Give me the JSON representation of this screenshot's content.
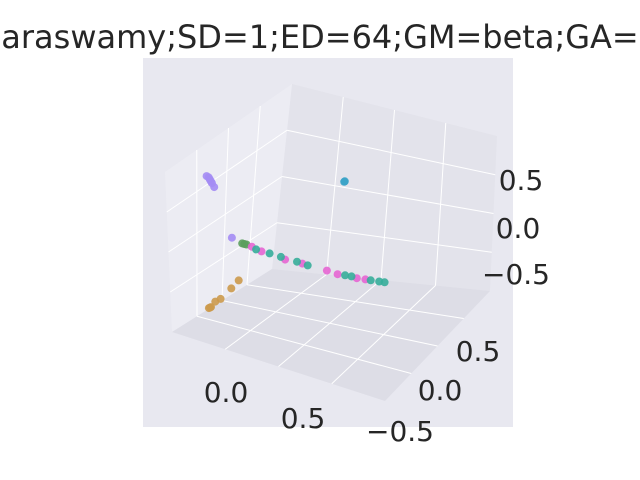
{
  "chart_data": {
    "type": "scatter",
    "projection": "3d",
    "title": "araswamy;SD=1;ED=64;GM=beta;GA=",
    "xlabel": "",
    "ylabel": "",
    "zlabel": "",
    "background": "#e8e8f0",
    "grid": true,
    "x_ticks": [
      "0.0",
      "0.5"
    ],
    "y_ticks": [
      "0.5",
      "0.0",
      "−0.5"
    ],
    "z_ticks": [
      "0.5",
      "0.0",
      "−0.5"
    ],
    "series": [
      {
        "color": "#a48cf4",
        "points": [
          {
            "x": -0.88,
            "y": -0.55,
            "z": 0.75
          },
          {
            "x": -0.86,
            "y": -0.55,
            "z": 0.74
          },
          {
            "x": -0.85,
            "y": -0.55,
            "z": 0.72
          },
          {
            "x": -0.84,
            "y": -0.55,
            "z": 0.7
          },
          {
            "x": -0.83,
            "y": -0.55,
            "z": 0.68
          },
          {
            "x": -0.81,
            "y": -0.55,
            "z": 0.64
          },
          {
            "x": -0.7,
            "y": -0.45,
            "z": 0.02
          }
        ]
      },
      {
        "color": "#3ba3c8",
        "points": [
          {
            "x": 0.02,
            "y": 0.15,
            "z": 0.6
          },
          {
            "x": 0.02,
            "y": 0.16,
            "z": 0.6
          }
        ]
      },
      {
        "color": "#cc9a4c",
        "points": [
          {
            "x": -0.86,
            "y": -0.56,
            "z": -0.83
          },
          {
            "x": -0.85,
            "y": -0.56,
            "z": -0.82
          },
          {
            "x": -0.84,
            "y": -0.56,
            "z": -0.81
          },
          {
            "x": -0.8,
            "y": -0.56,
            "z": -0.73
          },
          {
            "x": -0.75,
            "y": -0.56,
            "z": -0.68
          },
          {
            "x": -0.65,
            "y": -0.56,
            "z": -0.52
          },
          {
            "x": -0.58,
            "y": -0.56,
            "z": -0.4
          }
        ]
      },
      {
        "color": "#5c9e5e",
        "points": [
          {
            "x": -0.63,
            "y": -0.4,
            "z": -0.05
          },
          {
            "x": -0.61,
            "y": -0.4,
            "z": -0.05
          },
          {
            "x": -0.59,
            "y": -0.4,
            "z": -0.05
          }
        ]
      },
      {
        "color": "#e565d3",
        "points": [
          {
            "x": -0.54,
            "y": -0.4,
            "z": -0.06
          },
          {
            "x": -0.46,
            "y": -0.38,
            "z": -0.1
          },
          {
            "x": -0.28,
            "y": -0.3,
            "z": -0.18
          },
          {
            "x": -0.16,
            "y": -0.22,
            "z": -0.23
          },
          {
            "x": 0.02,
            "y": -0.12,
            "z": -0.31
          },
          {
            "x": 0.1,
            "y": -0.08,
            "z": -0.35
          },
          {
            "x": 0.24,
            "y": 0.0,
            "z": -0.4
          },
          {
            "x": 0.3,
            "y": 0.04,
            "z": -0.42
          }
        ]
      },
      {
        "color": "#36ad9a",
        "points": [
          {
            "x": -0.5,
            "y": -0.4,
            "z": -0.08
          },
          {
            "x": -0.4,
            "y": -0.35,
            "z": -0.12
          },
          {
            "x": -0.32,
            "y": -0.3,
            "z": -0.16
          },
          {
            "x": -0.2,
            "y": -0.24,
            "z": -0.21
          },
          {
            "x": -0.12,
            "y": -0.2,
            "z": -0.25
          },
          {
            "x": 0.15,
            "y": -0.04,
            "z": -0.37
          },
          {
            "x": 0.2,
            "y": -0.02,
            "z": -0.38
          },
          {
            "x": 0.34,
            "y": 0.06,
            "z": -0.43
          },
          {
            "x": 0.4,
            "y": 0.1,
            "z": -0.45
          },
          {
            "x": 0.44,
            "y": 0.12,
            "z": -0.46
          }
        ]
      }
    ]
  }
}
